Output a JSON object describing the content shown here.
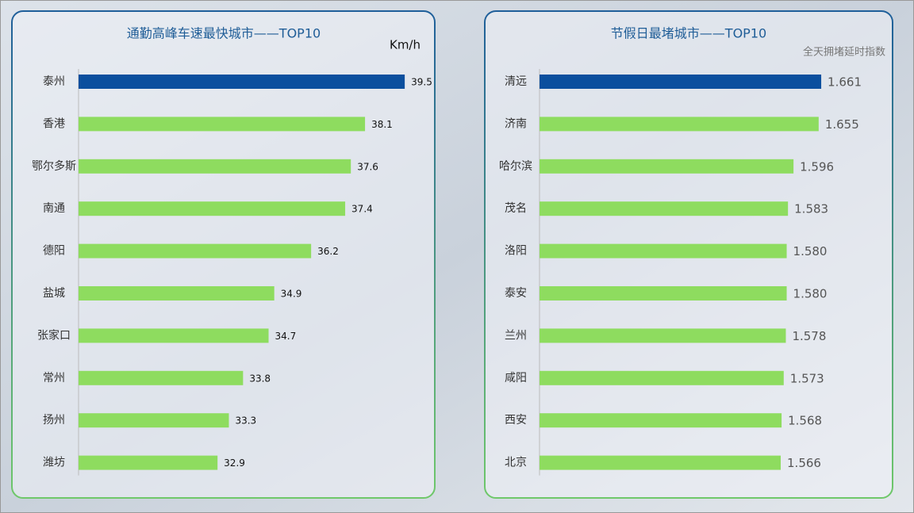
{
  "chart_data": [
    {
      "type": "bar",
      "title": "通勤高峰车速最快城市——TOP10",
      "unit": "Km/h",
      "categories": [
        "泰州",
        "香港",
        "鄂尔多斯",
        "南通",
        "德阳",
        "盐城",
        "张家口",
        "常州",
        "扬州",
        "潍坊"
      ],
      "values": [
        39.5,
        38.1,
        37.6,
        37.4,
        36.2,
        34.9,
        34.7,
        33.8,
        33.3,
        32.9
      ],
      "colors": [
        "#0b4f9e",
        "#8edc5f",
        "#8edc5f",
        "#8edc5f",
        "#8edc5f",
        "#8edc5f",
        "#8edc5f",
        "#8edc5f",
        "#8edc5f",
        "#8edc5f"
      ],
      "xlim": [
        28,
        40
      ]
    },
    {
      "type": "bar",
      "title": "节假日最堵城市——TOP10",
      "unit": "全天拥堵延时指数",
      "categories": [
        "清远",
        "济南",
        "哈尔滨",
        "茂名",
        "洛阳",
        "泰安",
        "兰州",
        "咸阳",
        "西安",
        "北京"
      ],
      "values": [
        1.661,
        1.655,
        1.596,
        1.583,
        1.58,
        1.58,
        1.578,
        1.573,
        1.568,
        1.566
      ],
      "value_labels": [
        "1.661",
        "1.655",
        "1.596",
        "1.583",
        "1.580",
        "1.580",
        "1.578",
        "1.573",
        "1.568",
        "1.566"
      ],
      "colors": [
        "#0b4f9e",
        "#8edc5f",
        "#8edc5f",
        "#8edc5f",
        "#8edc5f",
        "#8edc5f",
        "#8edc5f",
        "#8edc5f",
        "#8edc5f",
        "#8edc5f"
      ],
      "xlim": [
        1,
        1.7
      ]
    }
  ]
}
